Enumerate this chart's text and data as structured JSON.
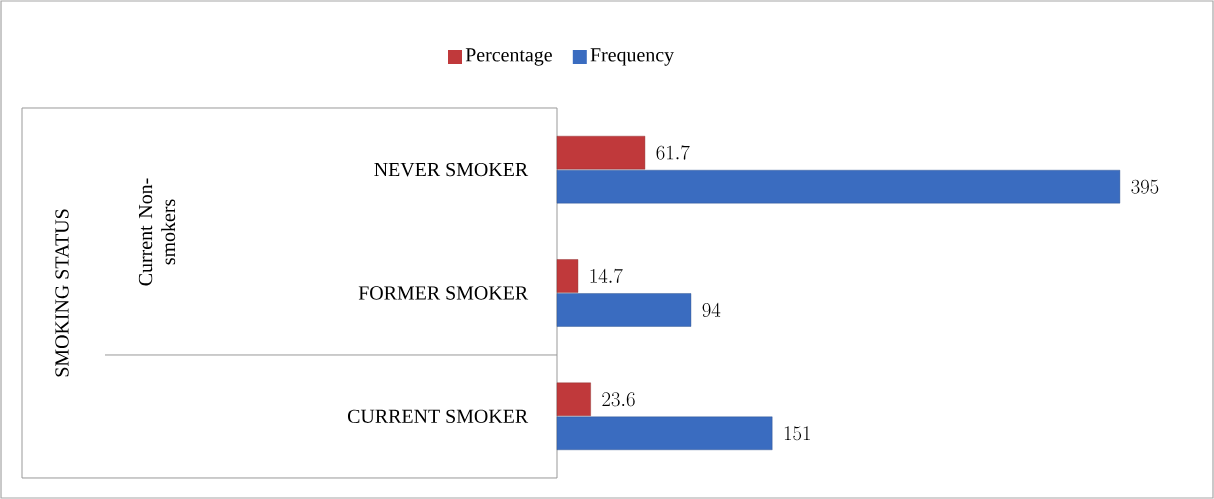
{
  "chart_data": {
    "type": "bar",
    "orientation": "horizontal",
    "categories": [
      "NEVER SMOKER",
      "FORMER SMOKER",
      "CURRENT SMOKER"
    ],
    "series": [
      {
        "name": "Percentage",
        "color": "#c0393b",
        "values": [
          61.7,
          14.7,
          23.6
        ]
      },
      {
        "name": "Frequency",
        "color": "#3a6cc0",
        "values": [
          395,
          94,
          151
        ]
      }
    ],
    "data_labels": true,
    "legend": "top",
    "annotations": [
      "SMOKING STATUS",
      "Current Non-smokers"
    ]
  }
}
